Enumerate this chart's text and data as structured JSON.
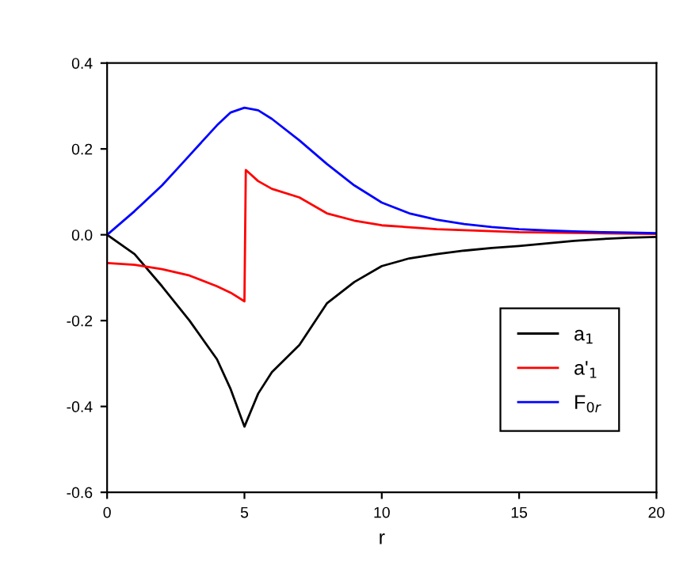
{
  "chart_data": {
    "type": "line",
    "xlabel": "r",
    "xlim": [
      0,
      20
    ],
    "xticks": [
      0,
      5,
      10,
      15,
      20
    ],
    "ylim": [
      -0.6,
      0.4
    ],
    "yticks": [
      {
        "value": -0.6,
        "label": "-0.6"
      },
      {
        "value": -0.4,
        "label": "-0.4"
      },
      {
        "value": -0.2,
        "label": "-0.2"
      },
      {
        "value": 0,
        "label": "0.0"
      },
      {
        "value": 0.2,
        "label": "0.2"
      },
      {
        "value": 0.4,
        "label": "0.4"
      }
    ],
    "grid": false,
    "legend": "bottom right",
    "marker": "none",
    "line_style": "solid",
    "series": [
      {
        "name": "a$_{1}$",
        "color": "#000000",
        "x": [
          0,
          1,
          2,
          3,
          4,
          4.5,
          5,
          5.5,
          6,
          7,
          8,
          9,
          10,
          11,
          12,
          13,
          14,
          15,
          16,
          17,
          18,
          19,
          20
        ],
        "values": [
          0,
          -0.045,
          -0.12,
          -0.2,
          -0.29,
          -0.36,
          -0.447,
          -0.37,
          -0.32,
          -0.257,
          -0.16,
          -0.11,
          -0.073,
          -0.055,
          -0.045,
          -0.037,
          -0.031,
          -0.026,
          -0.02,
          -0.014,
          -0.01,
          -0.007,
          -0.005
        ]
      },
      {
        "name": "a'$_{1}$",
        "color": "#ff0000",
        "x": [
          0,
          1,
          2,
          3,
          4,
          4.5,
          5,
          5.05,
          5.5,
          6,
          7,
          8,
          9,
          10,
          12,
          15,
          20
        ],
        "values": [
          -0.066,
          -0.07,
          -0.08,
          -0.095,
          -0.12,
          -0.135,
          -0.155,
          0.151,
          0.125,
          0.107,
          0.087,
          0.05,
          0.033,
          0.022,
          0.013,
          0.006,
          0.002
        ]
      },
      {
        "name": "F$_{0r}$",
        "color": "#0000ff",
        "x": [
          0,
          1,
          2,
          2.5,
          3,
          4,
          4.5,
          5,
          5.5,
          6,
          7,
          8,
          9,
          10,
          11,
          12,
          13,
          14,
          15,
          16,
          17,
          18,
          19,
          20
        ],
        "values": [
          0,
          0.055,
          0.115,
          0.15,
          0.185,
          0.255,
          0.285,
          0.296,
          0.29,
          0.27,
          0.22,
          0.165,
          0.115,
          0.075,
          0.05,
          0.035,
          0.025,
          0.018,
          0.013,
          0.01,
          0.008,
          0.006,
          0.005,
          0.004
        ]
      }
    ]
  }
}
